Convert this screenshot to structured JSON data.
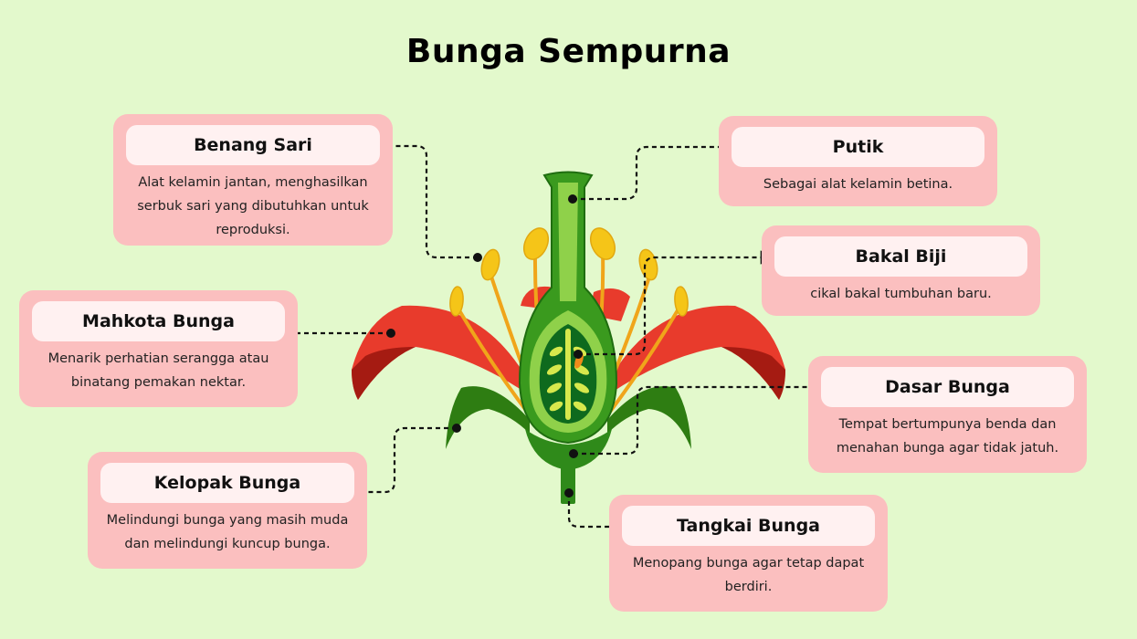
{
  "title": "Bunga Sempurna",
  "parts": {
    "benang_sari": {
      "label": "Benang Sari",
      "desc": "Alat kelamin jantan, menghasilkan serbuk sari yang dibutuhkan untuk reproduksi."
    },
    "putik": {
      "label": "Putik",
      "desc": "Sebagai alat kelamin betina."
    },
    "bakal_biji": {
      "label": "Bakal Biji",
      "desc": "cikal bakal tumbuhan baru."
    },
    "mahkota_bunga": {
      "label": "Mahkota Bunga",
      "desc": "Menarik perhatian serangga atau binatang pemakan nektar."
    },
    "dasar_bunga": {
      "label": "Dasar Bunga",
      "desc": "Tempat bertumpunya benda dan menahan bunga agar tidak jatuh."
    },
    "kelopak_bunga": {
      "label": "Kelopak Bunga",
      "desc": "Melindungi bunga yang masih muda dan melindungi kuncup bunga."
    },
    "tangkai_bunga": {
      "label": "Tangkai Bunga",
      "desc": "Menopang bunga agar tetap dapat berdiri."
    }
  },
  "colors": {
    "background": "#e3f9cc",
    "card": "#fbbfbf",
    "card_header": "#fff1f1",
    "petal": "#e83b2c",
    "petal_dark": "#a51b12",
    "stem_green": "#2f8a1a",
    "dark_green": "#125c12",
    "light_green": "#8fd14a",
    "anther": "#f5c518",
    "filament": "#f0a51a"
  }
}
